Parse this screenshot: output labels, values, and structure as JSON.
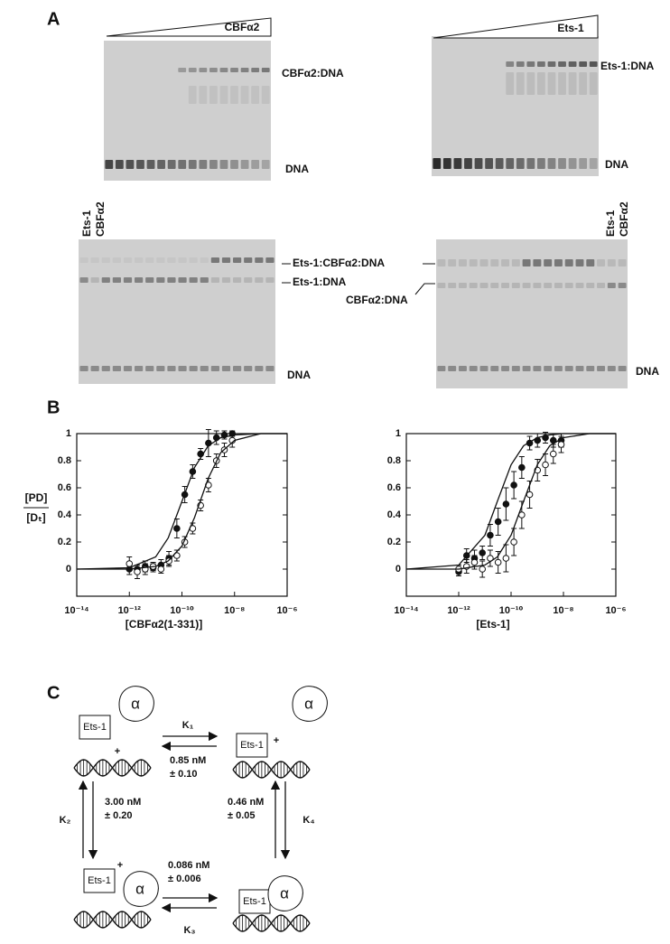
{
  "panel_labels": [
    "A",
    "B",
    "C"
  ],
  "gels": [
    {
      "wedge_label": "CBFα2",
      "bands": [
        "CBFα2:DNA",
        "DNA"
      ]
    },
    {
      "wedge_label": "Ets-1",
      "bands": [
        "Ets-1:DNA",
        "DNA"
      ]
    },
    {
      "lanes": [
        "Ets-1",
        "CBFα2"
      ],
      "bands": [
        "Ets-1:CBFα2:DNA",
        "Ets-1:DNA",
        "DNA"
      ]
    },
    {
      "lanes": [
        "Ets-1",
        "CBFα2"
      ],
      "bands": [
        "CBFα2:DNA",
        "DNA"
      ]
    }
  ],
  "chart_data": [
    {
      "type": "scatter",
      "ylabel": [
        "[PD]",
        "[Dₜ]"
      ],
      "xlabel": "[CBFα2(1-331)]",
      "log_x": true,
      "xlim": [
        1e-14,
        1e-06
      ],
      "ylim": [
        -0.2,
        1
      ],
      "xticks": [
        {
          "value": 1e-14,
          "label": "10⁻¹⁴"
        },
        {
          "value": 1e-12,
          "label": "10⁻¹²"
        },
        {
          "value": 1e-10,
          "label": "10⁻¹⁰"
        },
        {
          "value": 1e-08,
          "label": "10⁻⁸"
        },
        {
          "value": 1e-06,
          "label": "10⁻⁶"
        }
      ],
      "yticks": [
        0,
        0.2,
        0.4,
        0.6,
        0.8,
        1
      ],
      "series": [
        {
          "marker": "filled",
          "color": "#111111",
          "x": [
            1e-12,
            2e-12,
            4e-12,
            8e-12,
            1.6e-11,
            3.2e-11,
            6.4e-11,
            1.28e-10,
            2.56e-10,
            5.12e-10,
            1.02e-09,
            2.05e-09,
            4.1e-09,
            8.2e-09
          ],
          "values": [
            0,
            0,
            0.02,
            0.01,
            0.03,
            0.08,
            0.3,
            0.55,
            0.72,
            0.85,
            0.93,
            0.97,
            0.99,
            1
          ],
          "errors": [
            0.04,
            0.03,
            0.04,
            0.03,
            0.04,
            0.05,
            0.07,
            0.06,
            0.05,
            0.04,
            0.1,
            0.05,
            0.03,
            0.02
          ]
        },
        {
          "marker": "open",
          "color": "#111111",
          "x": [
            1e-12,
            2e-12,
            4e-12,
            8e-12,
            1.6e-11,
            3.2e-11,
            6.4e-11,
            1.28e-10,
            2.56e-10,
            5.12e-10,
            1.02e-09,
            2.05e-09,
            4.1e-09,
            8.2e-09
          ],
          "values": [
            0.04,
            -0.02,
            0,
            0.02,
            0,
            0.06,
            0.1,
            0.2,
            0.3,
            0.47,
            0.62,
            0.8,
            0.88,
            0.95
          ],
          "errors": [
            0.05,
            0.05,
            0.04,
            0.03,
            0.03,
            0.04,
            0.04,
            0.04,
            0.04,
            0.04,
            0.05,
            0.05,
            0.05,
            0.05
          ]
        },
        {
          "marker": "line",
          "color": "#111111",
          "x": [
            1e-14,
            1e-12,
            1e-11,
            3e-11,
            1e-10,
            3e-10,
            1e-09,
            3e-09,
            1e-08,
            1e-07,
            1e-06
          ],
          "values": [
            0,
            0.01,
            0.09,
            0.23,
            0.5,
            0.75,
            0.91,
            0.97,
            0.99,
            1,
            1
          ]
        },
        {
          "marker": "line",
          "color": "#111111",
          "x": [
            1e-14,
            1e-12,
            1e-11,
            3e-11,
            1e-10,
            3e-10,
            1e-09,
            3e-09,
            1e-08,
            1e-07,
            1e-06
          ],
          "values": [
            0,
            0,
            0.02,
            0.06,
            0.17,
            0.38,
            0.67,
            0.86,
            0.95,
            1,
            1
          ]
        }
      ]
    },
    {
      "type": "scatter",
      "xlabel": "[Ets-1]",
      "log_x": true,
      "xlim": [
        1e-14,
        1e-06
      ],
      "ylim": [
        -0.2,
        1
      ],
      "xticks": [
        {
          "value": 1e-14,
          "label": "10⁻¹⁴"
        },
        {
          "value": 1e-12,
          "label": "10⁻¹²"
        },
        {
          "value": 1e-10,
          "label": "10⁻¹⁰"
        },
        {
          "value": 1e-08,
          "label": "10⁻⁸"
        },
        {
          "value": 1e-06,
          "label": "10⁻⁶"
        }
      ],
      "yticks": [
        0,
        0.2,
        0.4,
        0.6,
        0.8,
        1
      ],
      "series": [
        {
          "marker": "filled",
          "color": "#111111",
          "x": [
            1e-12,
            2e-12,
            4e-12,
            8e-12,
            1.6e-11,
            3.2e-11,
            6.4e-11,
            1.28e-10,
            2.56e-10,
            5.12e-10,
            1.02e-09,
            2.05e-09,
            4.1e-09,
            8.2e-09
          ],
          "values": [
            -0.02,
            0.1,
            0.08,
            0.12,
            0.25,
            0.35,
            0.48,
            0.62,
            0.75,
            0.93,
            0.95,
            0.97,
            0.95,
            0.95
          ],
          "errors": [
            0.03,
            0.05,
            0.06,
            0.05,
            0.08,
            0.1,
            0.12,
            0.1,
            0.08,
            0.05,
            0.05,
            0.04,
            0.05,
            0.05
          ]
        },
        {
          "marker": "open",
          "color": "#111111",
          "x": [
            1e-12,
            2e-12,
            4e-12,
            8e-12,
            1.6e-11,
            3.2e-11,
            6.4e-11,
            1.28e-10,
            2.56e-10,
            5.12e-10,
            1.02e-09,
            2.05e-09,
            4.1e-09,
            8.2e-09
          ],
          "values": [
            0,
            0.02,
            0.05,
            0,
            0.08,
            0.05,
            0.08,
            0.2,
            0.4,
            0.55,
            0.73,
            0.77,
            0.85,
            0.92
          ],
          "errors": [
            0.03,
            0.05,
            0.05,
            0.06,
            0.06,
            0.08,
            0.1,
            0.1,
            0.1,
            0.1,
            0.08,
            0.08,
            0.07,
            0.06
          ]
        },
        {
          "marker": "line",
          "color": "#111111",
          "x": [
            1e-14,
            1e-12,
            1e-11,
            3e-11,
            1e-10,
            3e-10,
            1e-09,
            3e-09,
            1e-08,
            1e-07,
            1e-06
          ],
          "values": [
            0,
            0.03,
            0.25,
            0.5,
            0.77,
            0.91,
            0.97,
            0.99,
            1,
            1,
            1
          ]
        },
        {
          "marker": "line",
          "color": "#111111",
          "x": [
            1e-14,
            1e-12,
            1e-11,
            3e-11,
            1e-10,
            3e-10,
            1e-09,
            3e-09,
            1e-08,
            1e-07,
            1e-06
          ],
          "values": [
            0,
            0,
            0.03,
            0.09,
            0.25,
            0.5,
            0.77,
            0.91,
            0.97,
            1,
            1
          ]
        }
      ]
    }
  ],
  "diagram": {
    "states": [
      {
        "protein": "Ets-1",
        "factor": "α",
        "plus": "+"
      },
      {
        "protein": "Ets-1",
        "factor": "α",
        "plus": "+"
      },
      {
        "protein": "Ets-1",
        "factor": "α",
        "plus": "+"
      },
      {
        "protein": "Ets-1",
        "factor": "α"
      }
    ],
    "constants": [
      {
        "k": "K₁",
        "value": "0.85 nM",
        "error": "± 0.10"
      },
      {
        "k": "K₂",
        "value": "3.00 nM",
        "error": "± 0.20"
      },
      {
        "k": "K₃",
        "value": "0.086 nM",
        "error": "± 0.006"
      },
      {
        "k": "K₄",
        "value": "0.46 nM",
        "error": "± 0.05"
      }
    ]
  }
}
